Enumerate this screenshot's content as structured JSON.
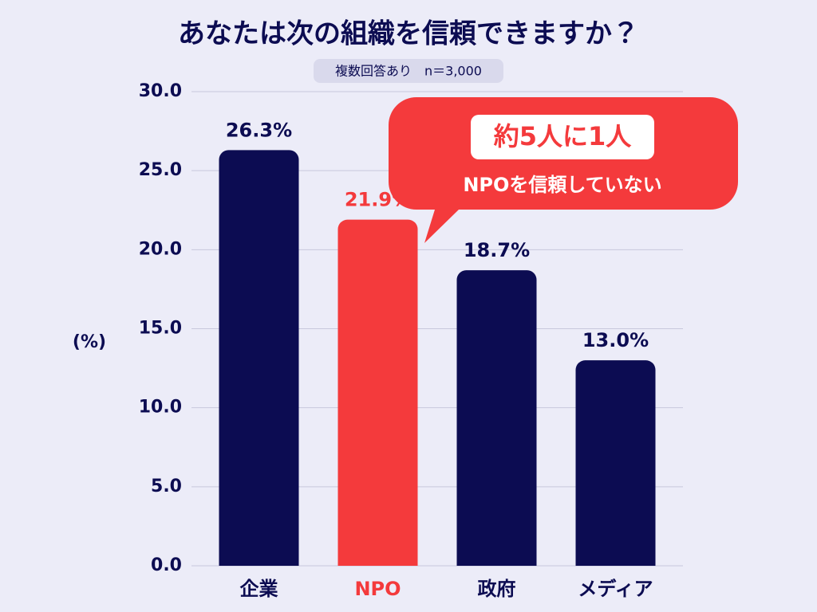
{
  "chart_data": {
    "type": "bar",
    "title": "あなたは次の組織を信頼できますか？",
    "subtitle": "複数回答あり　n＝3,000",
    "y_label": "(%)",
    "categories": [
      "企業",
      "NPO",
      "政府",
      "メディア"
    ],
    "values": [
      26.3,
      21.9,
      18.7,
      13.0
    ],
    "value_labels": [
      "26.3%",
      "21.9%",
      "18.7%",
      "13.0%"
    ],
    "colors": [
      "#0c0c52",
      "#f43a3c",
      "#0c0c52",
      "#0c0c52"
    ],
    "ylim": [
      0,
      30
    ],
    "yticks": [
      {
        "value": 0,
        "label": "0.0"
      },
      {
        "value": 5,
        "label": "5.0"
      },
      {
        "value": 10,
        "label": "10.0"
      },
      {
        "value": 15,
        "label": "15.0"
      },
      {
        "value": 20,
        "label": "20.0"
      },
      {
        "value": 25,
        "label": "25.0"
      },
      {
        "value": 30,
        "label": "30.0"
      }
    ],
    "grid": true,
    "annotations": [
      "約5人に1人",
      "NPOを信頼していない"
    ]
  }
}
